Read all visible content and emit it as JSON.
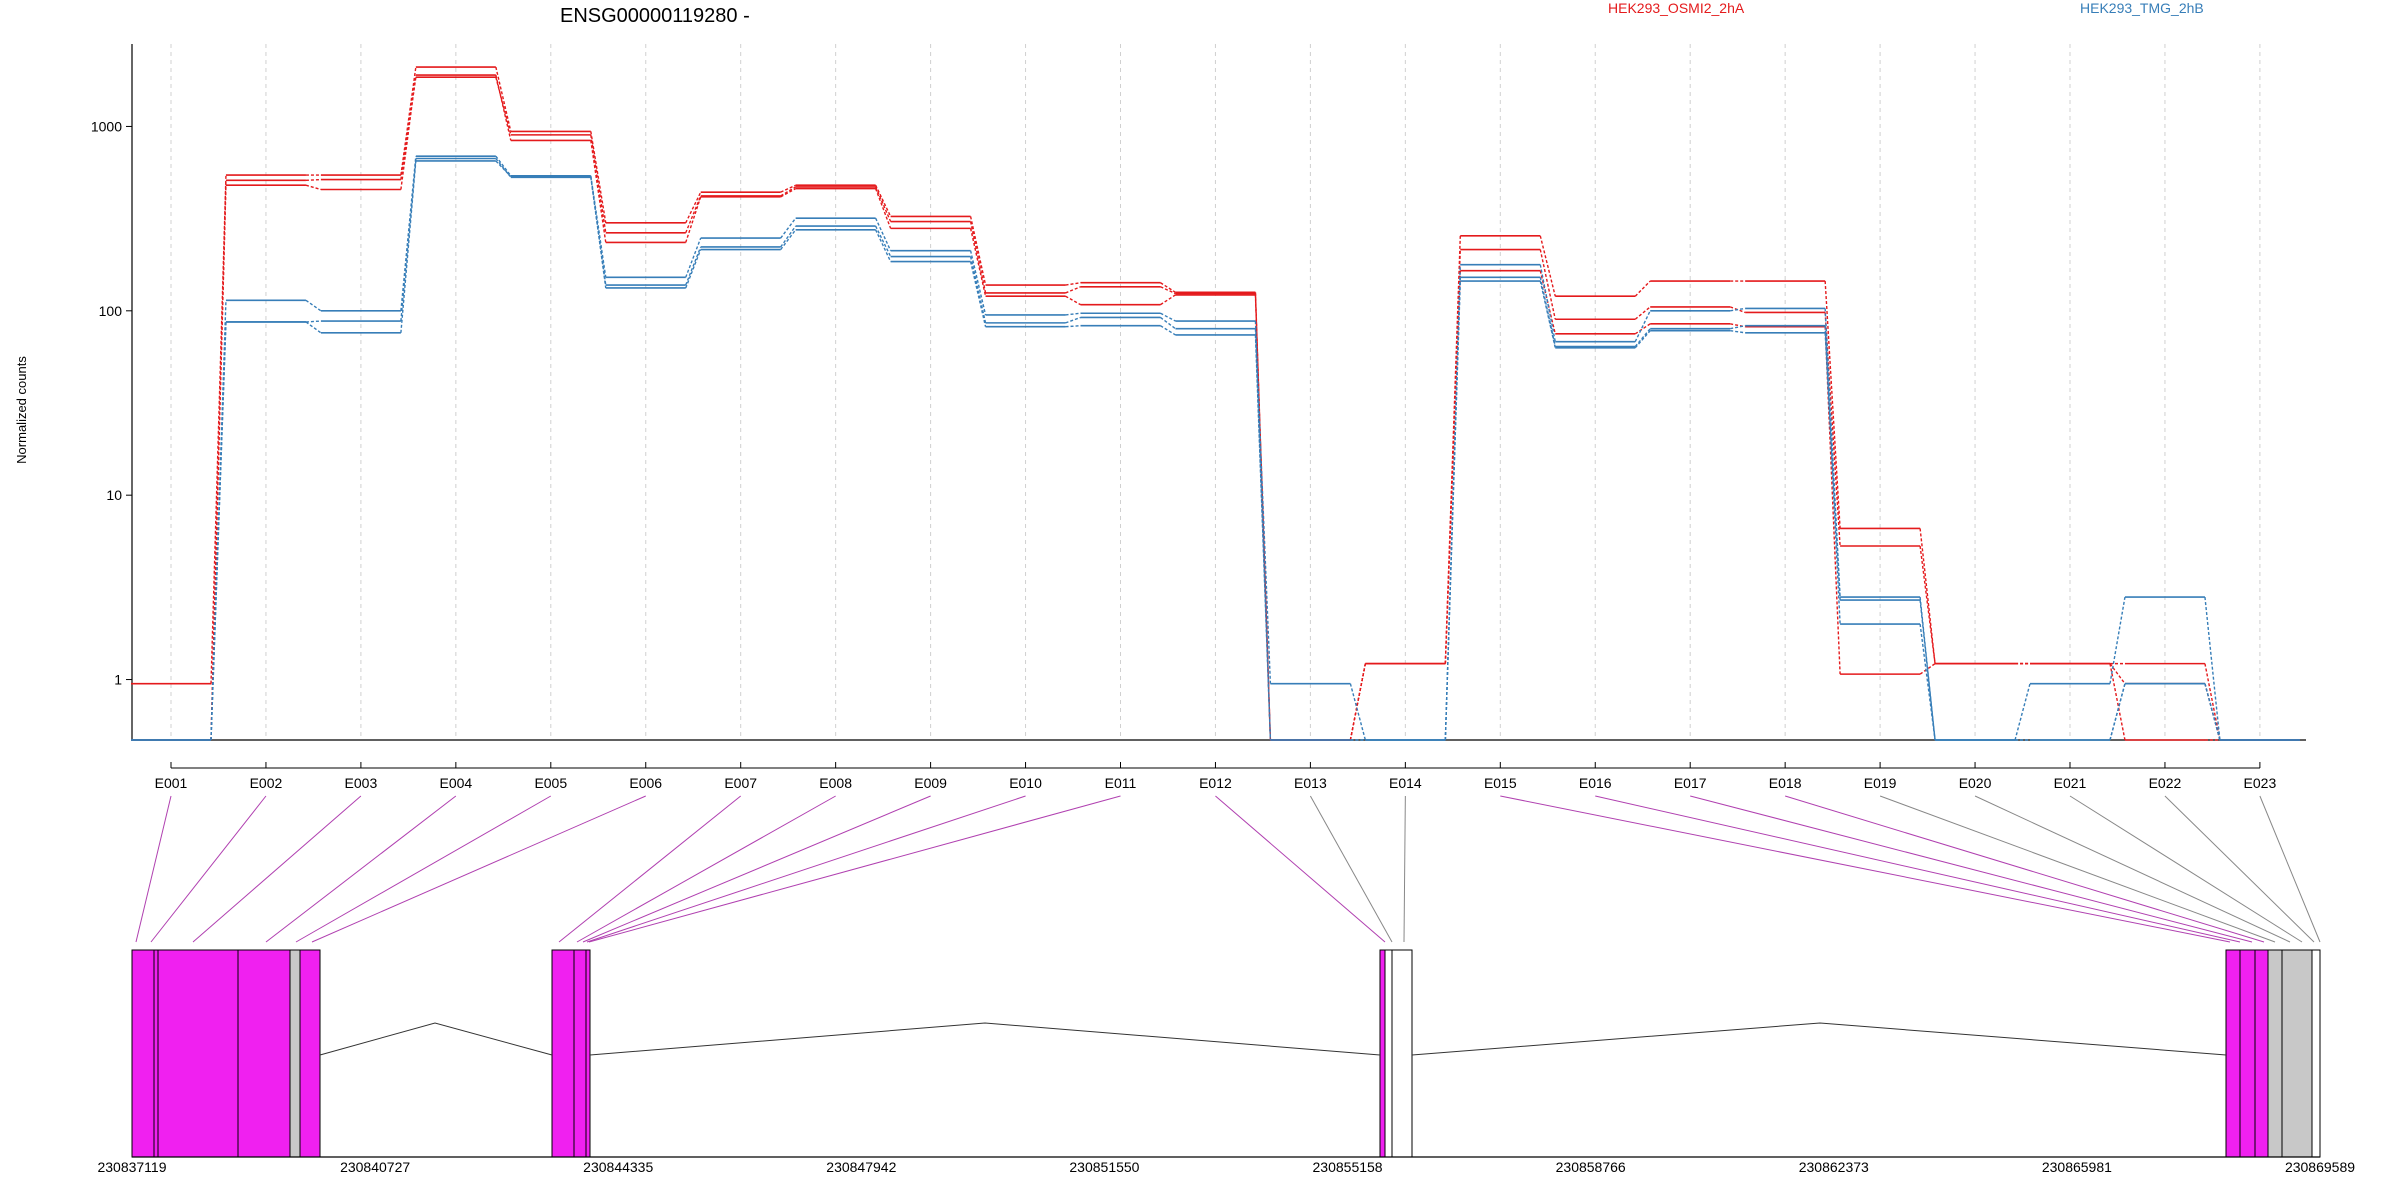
{
  "chart_data": {
    "type": "line",
    "title": "ENSG00000119280 -",
    "ylabel": "Normalized counts",
    "yscale": "log",
    "grid": "vertical dashed gridlines at each exon",
    "legend_placement": "top",
    "categories": [
      "E001",
      "E002",
      "E003",
      "E004",
      "E005",
      "E006",
      "E007",
      "E008",
      "E009",
      "E010",
      "E011",
      "E012",
      "E013",
      "E014",
      "E015",
      "E016",
      "E017",
      "E018",
      "E019",
      "E020",
      "E021",
      "E022",
      "E023"
    ],
    "yticks": [
      1,
      10,
      100,
      1000
    ],
    "ytick_labels": [
      "1",
      "10",
      "100",
      "1000"
    ],
    "ylim": [
      0.47,
      2800
    ],
    "groups": [
      {
        "name": "HEK293_OSMI2_2hA",
        "color": "#e41a1c"
      },
      {
        "name": "HEK293_TMG_2hB",
        "color": "#377eb8"
      }
    ],
    "series": [
      {
        "group": 0,
        "values": [
          0.95,
          545,
          545,
          2100,
          940,
          300,
          440,
          480,
          325,
          138,
          142,
          126,
          0.47,
          1.22,
          255,
          120,
          145,
          145,
          6.6,
          1.22,
          1.22,
          1.22,
          0.47
        ]
      },
      {
        "group": 0,
        "values": [
          0.47,
          510,
          515,
          1850,
          900,
          265,
          420,
          470,
          305,
          125,
          135,
          124,
          0.47,
          1.22,
          215,
          90,
          105,
          98,
          5.3,
          1.22,
          1.22,
          0.95,
          0.47
        ]
      },
      {
        "group": 0,
        "values": [
          0.47,
          480,
          455,
          1900,
          840,
          235,
          415,
          460,
          280,
          120,
          108,
          122,
          0.47,
          1.22,
          165,
          75,
          85,
          82,
          1.07,
          1.22,
          1.22,
          0.47,
          0.47
        ]
      },
      {
        "group": 1,
        "values": [
          0.47,
          114,
          100,
          690,
          540,
          152,
          248,
          318,
          212,
          95,
          97,
          88,
          0.95,
          0.47,
          178,
          68,
          100,
          103,
          2.8,
          0.47,
          0.95,
          2.8,
          0.47
        ]
      },
      {
        "group": 1,
        "values": [
          0.47,
          87,
          88,
          670,
          530,
          138,
          222,
          288,
          197,
          86,
          92,
          80,
          0.47,
          0.47,
          152,
          64,
          80,
          83,
          2.0,
          0.47,
          0.47,
          0.95,
          0.47
        ]
      },
      {
        "group": 1,
        "values": [
          0.47,
          87,
          76,
          650,
          535,
          133,
          215,
          275,
          185,
          82,
          83,
          74,
          0.47,
          0.47,
          145,
          63,
          78,
          76,
          2.7,
          0.47,
          0.47,
          0.95,
          0.47
        ]
      }
    ],
    "gene_model": {
      "coordinate_labels": [
        "230837119",
        "230840727",
        "230844335",
        "230847942",
        "230851550",
        "230855158",
        "230858766",
        "230862373",
        "230865981",
        "230869589"
      ],
      "highlight_color": "#f020f0",
      "plain_color": "#ffffff",
      "shaded_color": "#c8c8c8",
      "exon_highlight": [
        true,
        true,
        true,
        true,
        true,
        true,
        true,
        true,
        true,
        true,
        true,
        true,
        false,
        false,
        true,
        true,
        true,
        true,
        false,
        false,
        false,
        false,
        false
      ]
    }
  }
}
